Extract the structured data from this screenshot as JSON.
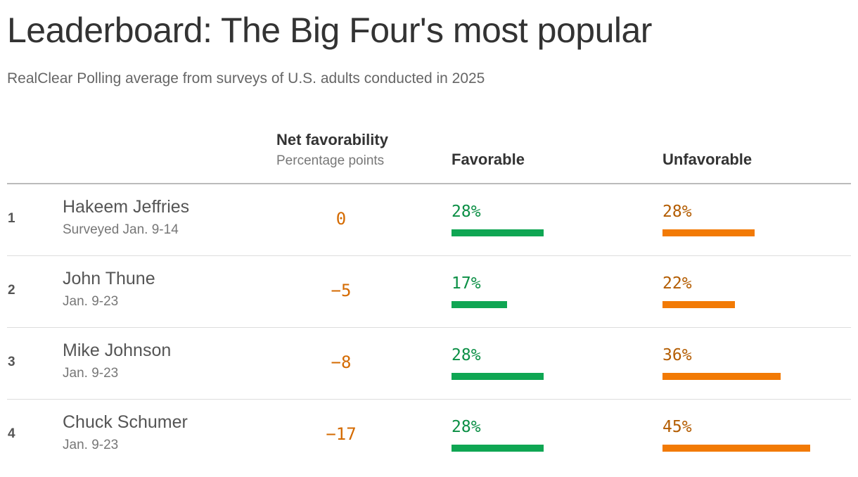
{
  "title": "Leaderboard: The Big Four's most popular",
  "subtitle": "RealClear Polling average from surveys of U.S. adults conducted in 2025",
  "columns": {
    "net": "Net favorability",
    "net_sub": "Percentage points",
    "favorable": "Favorable",
    "unfavorable": "Unfavorable"
  },
  "colors": {
    "favorable": "#0fa653",
    "unfavorable": "#f27a05",
    "net_text": "#d46a00"
  },
  "chart_data": {
    "type": "table",
    "title": "Leaderboard: The Big Four's most popular",
    "columns": [
      "Net favorability",
      "Favorable",
      "Unfavorable"
    ],
    "rows": [
      {
        "rank": "1",
        "name": "Hakeem Jeffries",
        "dates": "Surveyed Jan. 9-14",
        "net": 0,
        "net_label": "0",
        "favorable": 28,
        "favorable_label": "28%",
        "unfavorable": 28,
        "unfavorable_label": "28%"
      },
      {
        "rank": "2",
        "name": "John Thune",
        "dates": "Jan. 9-23",
        "net": -5,
        "net_label": "−5",
        "favorable": 17,
        "favorable_label": "17%",
        "unfavorable": 22,
        "unfavorable_label": "22%"
      },
      {
        "rank": "3",
        "name": "Mike Johnson",
        "dates": "Jan. 9-23",
        "net": -8,
        "net_label": "−8",
        "favorable": 28,
        "favorable_label": "28%",
        "unfavorable": 36,
        "unfavorable_label": "36%"
      },
      {
        "rank": "4",
        "name": "Chuck Schumer",
        "dates": "Jan. 9-23",
        "net": -17,
        "net_label": "−17",
        "favorable": 28,
        "favorable_label": "28%",
        "unfavorable": 45,
        "unfavorable_label": "45%"
      }
    ]
  }
}
